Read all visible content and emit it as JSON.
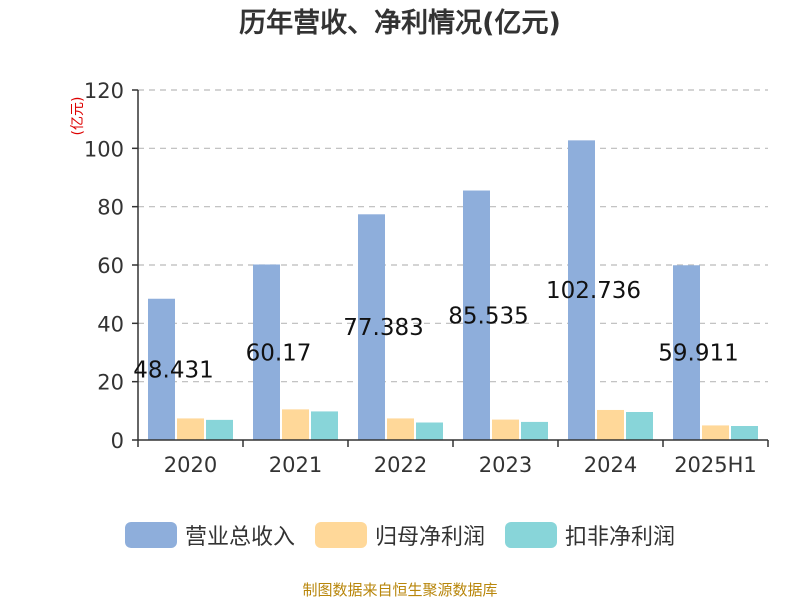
{
  "page": {
    "title": "历年营收、净利情况(亿元)",
    "source": "制图数据来自恒生聚源数据库"
  },
  "colors": {
    "revenue": "#8eaedb",
    "net_profit_parent": "#ffd899",
    "net_profit_deducted": "#88d5d9",
    "axis_unit": "#dd0000",
    "grid": "#bbbbbb"
  },
  "chart_data": {
    "type": "bar",
    "title": "历年营收、净利情况(亿元)",
    "ylabel": "(亿元)",
    "xlabel": "",
    "ylim": [
      0,
      120
    ],
    "yticks": [
      0,
      20,
      40,
      60,
      80,
      100,
      120
    ],
    "grid": true,
    "legend_position": "bottom",
    "categories": [
      "2020",
      "2021",
      "2022",
      "2023",
      "2024",
      "2025H1"
    ],
    "series": [
      {
        "name": "营业总收入",
        "values": [
          48.431,
          60.17,
          77.383,
          85.535,
          102.736,
          59.911
        ]
      },
      {
        "name": "归母净利润",
        "values": [
          7.4,
          10.5,
          7.4,
          7.0,
          10.3,
          5.0
        ]
      },
      {
        "name": "扣非净利润",
        "values": [
          6.9,
          9.8,
          6.0,
          6.2,
          9.6,
          4.8
        ]
      }
    ],
    "data_labels": [
      "48.431",
      "60.17",
      "77.383",
      "85.535",
      "102.736",
      "59.911"
    ]
  }
}
